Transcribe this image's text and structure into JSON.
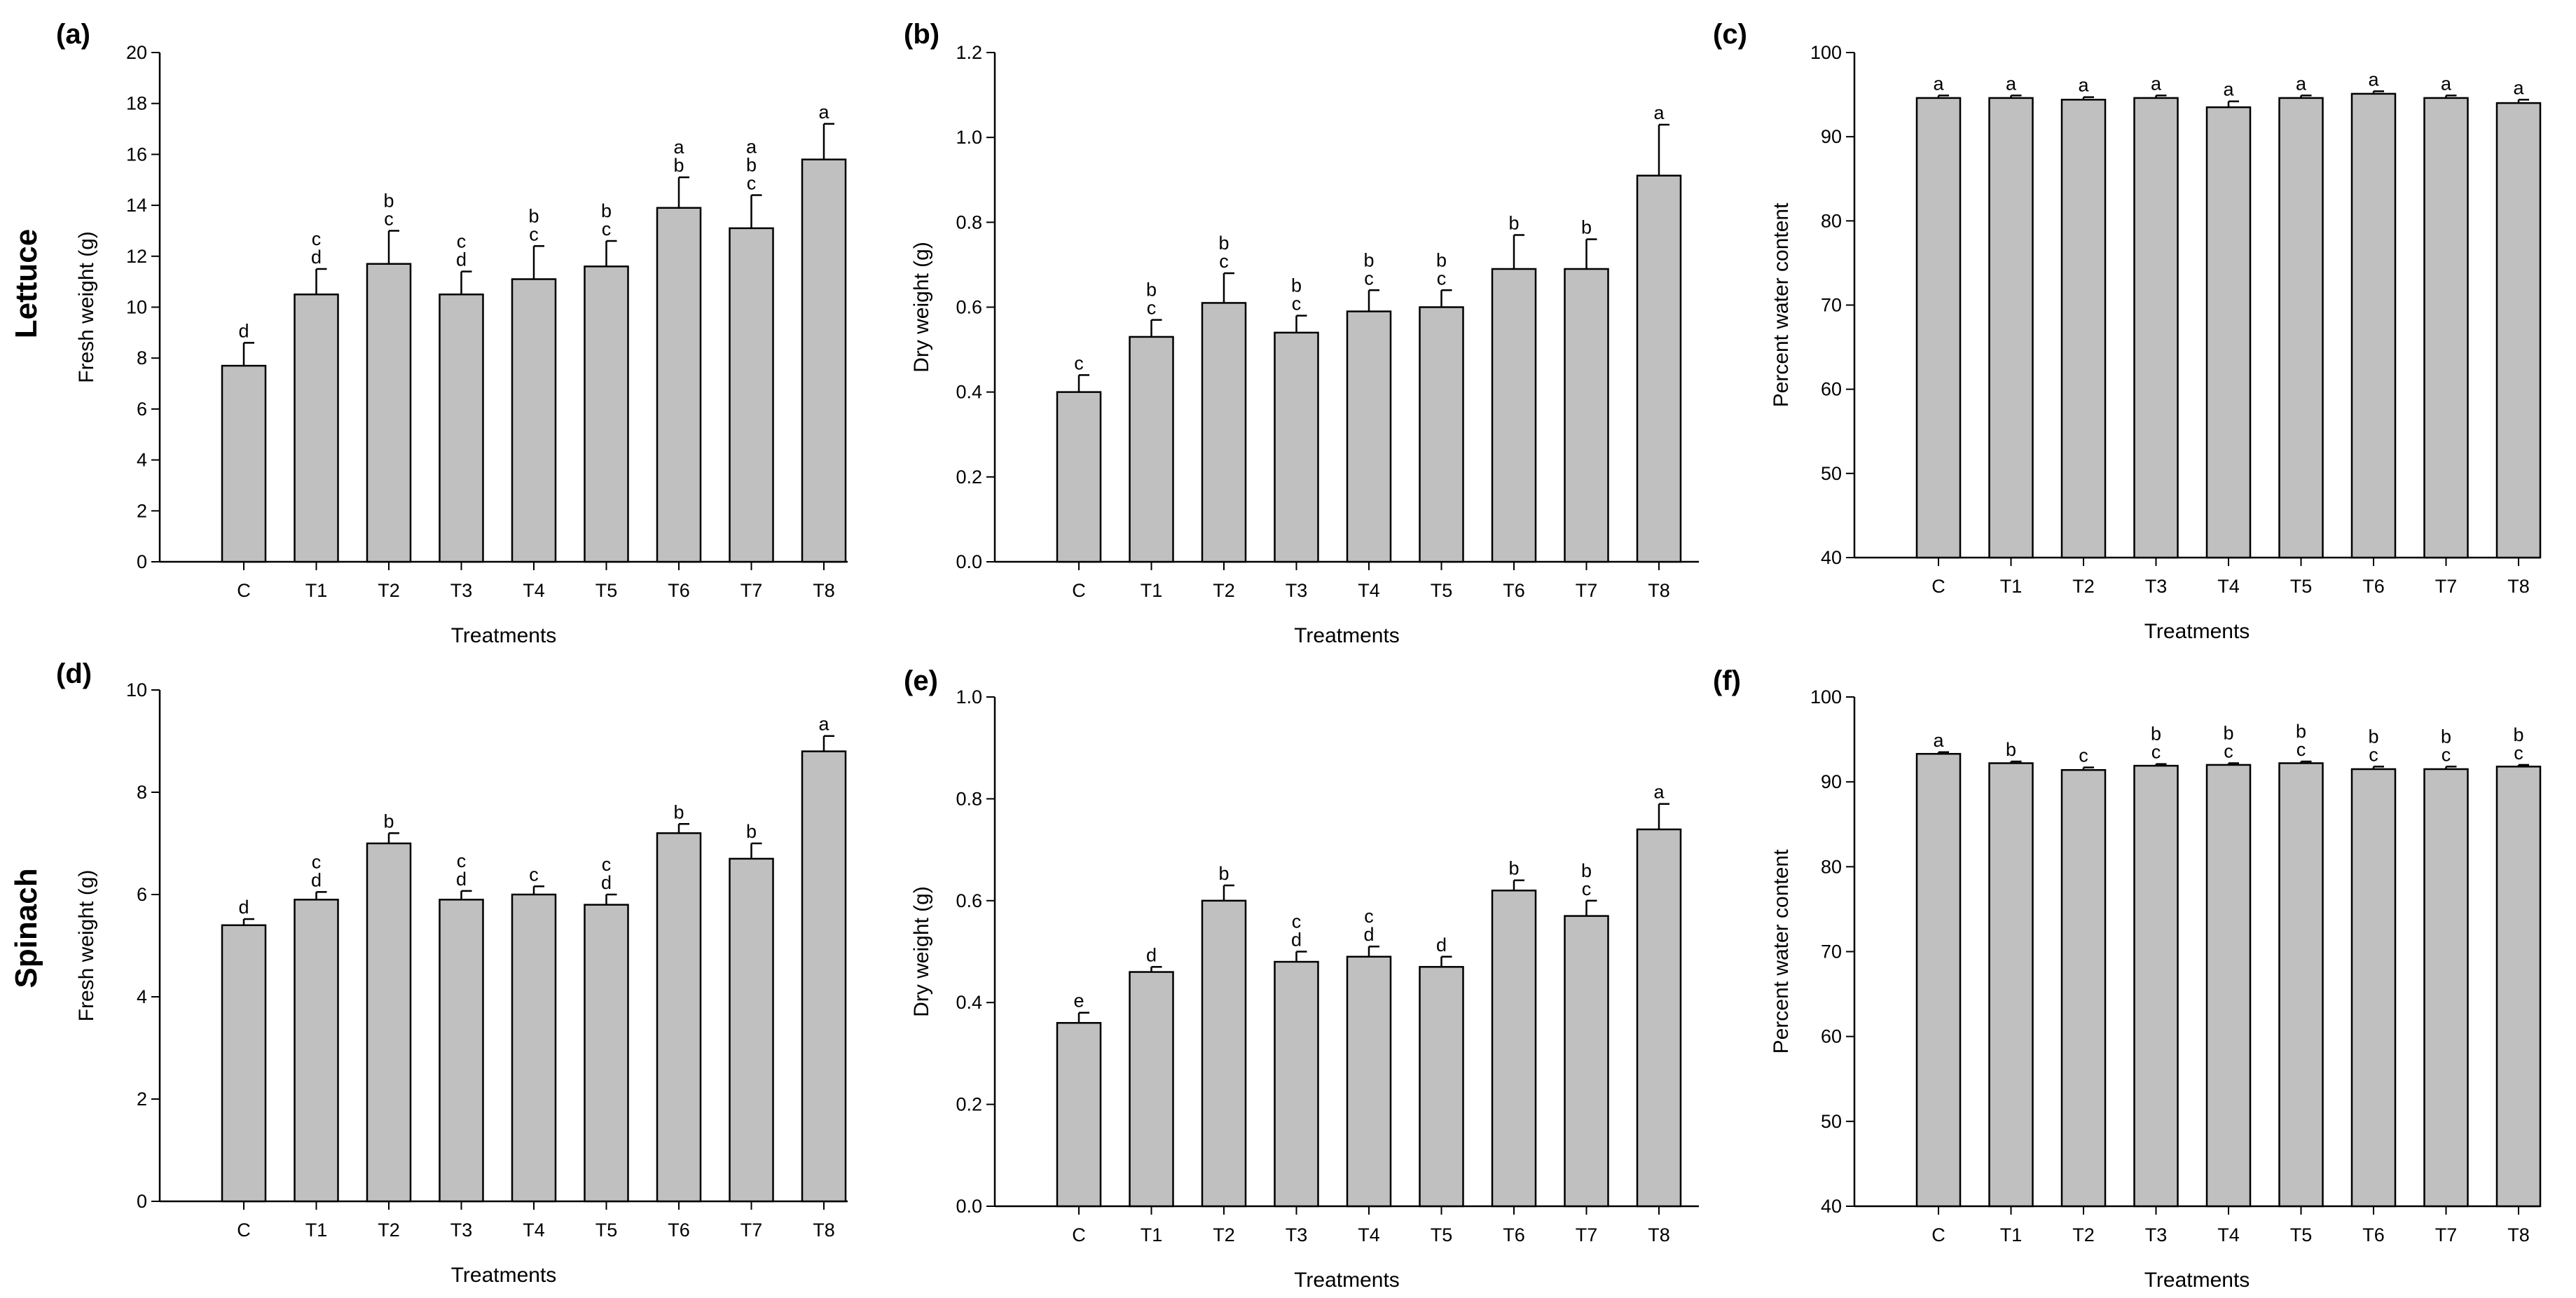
{
  "figure": {
    "row_labels": [
      "Lettuce",
      "Spinach"
    ]
  },
  "chart_data": [
    {
      "panel": "(a)",
      "type": "bar",
      "categories": [
        "C",
        "T1",
        "T2",
        "T3",
        "T4",
        "T5",
        "T6",
        "T7",
        "T8"
      ],
      "values": [
        7.7,
        10.5,
        11.7,
        10.5,
        11.1,
        11.6,
        13.9,
        13.1,
        15.8
      ],
      "errors": [
        0.9,
        1.0,
        1.3,
        0.9,
        1.3,
        1.0,
        1.2,
        1.3,
        1.4
      ],
      "letters": [
        [
          "d"
        ],
        [
          "c",
          "d"
        ],
        [
          "b",
          "c"
        ],
        [
          "c",
          "d"
        ],
        [
          "b",
          "c"
        ],
        [
          "b",
          "c"
        ],
        [
          "a",
          "b"
        ],
        [
          "a",
          "b",
          "c"
        ],
        [
          "a"
        ]
      ],
      "xlabel": "Treatments",
      "ylabel": "Fresh weight (g)",
      "ylim": [
        0,
        20
      ],
      "yticks": [
        0,
        2,
        4,
        6,
        8,
        10,
        12,
        14,
        16,
        18,
        20
      ],
      "ytick_labels": [
        "0",
        "2",
        "4",
        "6",
        "8",
        "10",
        "12",
        "14",
        "16",
        "18",
        "20"
      ]
    },
    {
      "panel": "(b)",
      "type": "bar",
      "categories": [
        "C",
        "T1",
        "T2",
        "T3",
        "T4",
        "T5",
        "T6",
        "T7",
        "T8"
      ],
      "values": [
        0.4,
        0.53,
        0.61,
        0.54,
        0.59,
        0.6,
        0.69,
        0.69,
        0.91
      ],
      "errors": [
        0.04,
        0.04,
        0.07,
        0.04,
        0.05,
        0.04,
        0.08,
        0.07,
        0.12
      ],
      "letters": [
        [
          "c"
        ],
        [
          "b",
          "c"
        ],
        [
          "b",
          "c"
        ],
        [
          "b",
          "c"
        ],
        [
          "b",
          "c"
        ],
        [
          "b",
          "c"
        ],
        [
          "b"
        ],
        [
          "b"
        ],
        [
          "a"
        ]
      ],
      "xlabel": "Treatments",
      "ylabel": "Dry weight (g)",
      "ylim": [
        0,
        1.2
      ],
      "yticks": [
        0,
        0.2,
        0.4,
        0.6,
        0.8,
        1.0,
        1.2
      ],
      "ytick_labels": [
        "0.0",
        "0.2",
        "0.4",
        "0.6",
        "0.8",
        "1.0",
        "1.2"
      ]
    },
    {
      "panel": "(c)",
      "type": "bar",
      "categories": [
        "C",
        "T1",
        "T2",
        "T3",
        "T4",
        "T5",
        "T6",
        "T7",
        "T8"
      ],
      "values": [
        94.6,
        94.6,
        94.4,
        94.6,
        93.5,
        94.6,
        95.1,
        94.6,
        94.0
      ],
      "errors": [
        0.3,
        0.3,
        0.3,
        0.3,
        0.7,
        0.3,
        0.3,
        0.3,
        0.4
      ],
      "letters": [
        [
          "a"
        ],
        [
          "a"
        ],
        [
          "a"
        ],
        [
          "a"
        ],
        [
          "a"
        ],
        [
          "a"
        ],
        [
          "a"
        ],
        [
          "a"
        ],
        [
          "a"
        ]
      ],
      "xlabel": "Treatments",
      "ylabel": "Percent water content",
      "ylim": [
        40,
        100
      ],
      "yticks": [
        40,
        50,
        60,
        70,
        80,
        90,
        100
      ],
      "ytick_labels": [
        "40",
        "50",
        "60",
        "70",
        "80",
        "90",
        "100"
      ]
    },
    {
      "panel": "(d)",
      "type": "bar",
      "categories": [
        "C",
        "T1",
        "T2",
        "T3",
        "T4",
        "T5",
        "T6",
        "T7",
        "T8"
      ],
      "values": [
        5.4,
        5.9,
        7.0,
        5.9,
        6.0,
        5.8,
        7.2,
        6.7,
        8.8
      ],
      "errors": [
        0.12,
        0.15,
        0.2,
        0.17,
        0.16,
        0.2,
        0.18,
        0.3,
        0.3
      ],
      "letters": [
        [
          "d"
        ],
        [
          "c",
          "d"
        ],
        [
          "b"
        ],
        [
          "c",
          "d"
        ],
        [
          "c"
        ],
        [
          "c",
          "d"
        ],
        [
          "b"
        ],
        [
          "b"
        ],
        [
          "a"
        ]
      ],
      "xlabel": "Treatments",
      "ylabel": "Fresh weight (g)",
      "ylim": [
        0,
        10
      ],
      "yticks": [
        0,
        2,
        4,
        6,
        8,
        10
      ],
      "ytick_labels": [
        "0",
        "2",
        "4",
        "6",
        "8",
        "10"
      ]
    },
    {
      "panel": "(e)",
      "type": "bar",
      "categories": [
        "C",
        "T1",
        "T2",
        "T3",
        "T4",
        "T5",
        "T6",
        "T7",
        "T8"
      ],
      "values": [
        0.36,
        0.46,
        0.6,
        0.48,
        0.49,
        0.47,
        0.62,
        0.57,
        0.74
      ],
      "errors": [
        0.02,
        0.01,
        0.03,
        0.02,
        0.02,
        0.02,
        0.02,
        0.03,
        0.05
      ],
      "letters": [
        [
          "e"
        ],
        [
          "d"
        ],
        [
          "b"
        ],
        [
          "c",
          "d"
        ],
        [
          "c",
          "d"
        ],
        [
          "d"
        ],
        [
          "b"
        ],
        [
          "b",
          "c"
        ],
        [
          "a"
        ]
      ],
      "xlabel": "Treatments",
      "ylabel": "Dry weight (g)",
      "ylim": [
        0,
        1.0
      ],
      "yticks": [
        0,
        0.2,
        0.4,
        0.6,
        0.8,
        1.0
      ],
      "ytick_labels": [
        "0.0",
        "0.2",
        "0.4",
        "0.6",
        "0.8",
        "1.0"
      ]
    },
    {
      "panel": "(f)",
      "type": "bar",
      "categories": [
        "C",
        "T1",
        "T2",
        "T3",
        "T4",
        "T5",
        "T6",
        "T7",
        "T8"
      ],
      "values": [
        93.3,
        92.2,
        91.4,
        91.9,
        92.0,
        92.2,
        91.5,
        91.5,
        91.8
      ],
      "errors": [
        0.2,
        0.2,
        0.3,
        0.2,
        0.2,
        0.2,
        0.3,
        0.3,
        0.2
      ],
      "letters": [
        [
          "a"
        ],
        [
          "b"
        ],
        [
          "c"
        ],
        [
          "b",
          "c"
        ],
        [
          "b",
          "c"
        ],
        [
          "b",
          "c"
        ],
        [
          "b",
          "c"
        ],
        [
          "b",
          "c"
        ],
        [
          "b",
          "c"
        ]
      ],
      "xlabel": "Treatments",
      "ylabel": "Percent water content",
      "ylim": [
        40,
        100
      ],
      "yticks": [
        40,
        50,
        60,
        70,
        80,
        90,
        100
      ],
      "ytick_labels": [
        "40",
        "50",
        "60",
        "70",
        "80",
        "90",
        "100"
      ]
    }
  ]
}
